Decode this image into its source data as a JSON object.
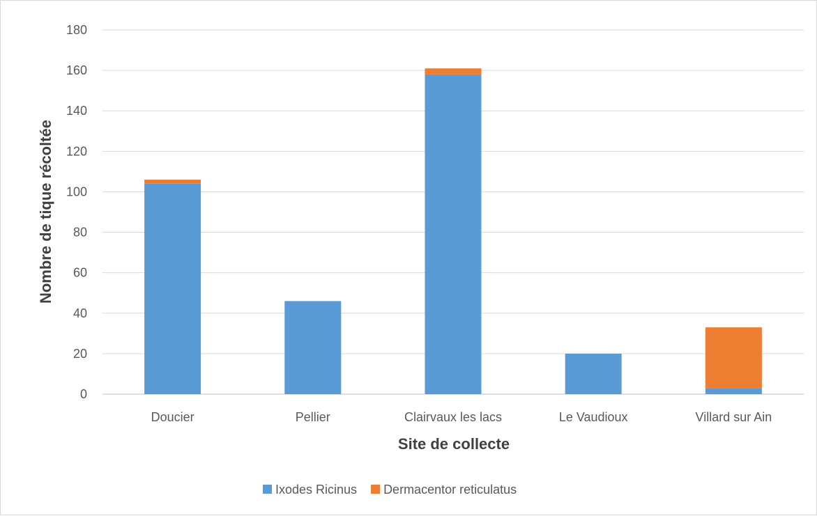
{
  "chart_data": {
    "type": "bar",
    "stacked": true,
    "categories": [
      "Doucier",
      "Pellier",
      "Clairvaux les lacs",
      "Le Vaudioux",
      "Villard sur Ain"
    ],
    "series": [
      {
        "name": "Ixodes Ricinus",
        "color": "#5b9bd5",
        "values": [
          104,
          46,
          158,
          20,
          3
        ]
      },
      {
        "name": "Dermacentor reticulatus",
        "color": "#ed7d31",
        "values": [
          2,
          0,
          3,
          0,
          30
        ]
      }
    ],
    "xlabel": "Site de collecte",
    "ylabel": "Nombre de tique récoltée",
    "ylim": [
      0,
      180
    ],
    "yticks": [
      "0",
      "20",
      "40",
      "60",
      "80",
      "100",
      "120",
      "140",
      "160",
      "180"
    ],
    "grid": true,
    "legend_position": "bottom"
  }
}
